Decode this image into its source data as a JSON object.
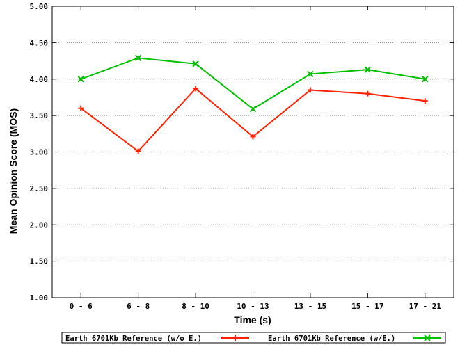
{
  "chart_data": {
    "type": "line",
    "title": "",
    "xlabel": "Time (s)",
    "ylabel": "Mean Opinion Score (MOS)",
    "categories": [
      "0 - 6",
      "6 - 8",
      "8 - 10",
      "10 - 13",
      "13 - 15",
      "15 - 17",
      "17 - 21"
    ],
    "ylim": [
      1.0,
      5.0
    ],
    "yticks": [
      "1.00",
      "1.50",
      "2.00",
      "2.50",
      "3.00",
      "3.50",
      "4.00",
      "4.50",
      "5.00"
    ],
    "grid": true,
    "legend_position": "bottom",
    "series": [
      {
        "name": "Earth 6701Kb Reference (w/o E.)",
        "color": "#ff2000",
        "marker": "plus",
        "values": [
          3.6,
          3.01,
          3.87,
          3.21,
          3.85,
          3.8,
          3.7
        ]
      },
      {
        "name": "Earth 6701Kb Reference (w/E.)",
        "color": "#00c000",
        "marker": "x",
        "values": [
          4.0,
          4.29,
          4.21,
          3.59,
          4.07,
          4.13,
          4.0
        ]
      }
    ]
  }
}
